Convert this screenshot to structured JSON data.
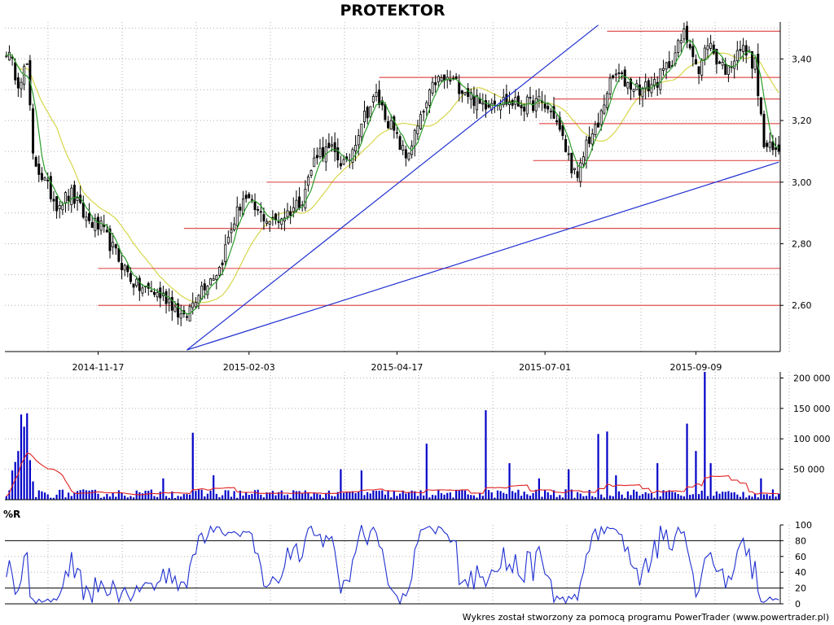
{
  "title": "PROTEKTOR",
  "footer": "Wykres został stworzony za pomocą programu PowerTrader (www.powertrader.pl)",
  "colors": {
    "candle": "#000000",
    "sma_short": "#2a9d2a",
    "sma_long": "#d6d64a",
    "support": "#e05050",
    "trendline": "#1f2fd0",
    "volume": "#0000c8",
    "volume_avg": "#e02020",
    "wr": "#1f2fd0",
    "grid": "#b0b0b0"
  },
  "chart_data": [
    {
      "type": "candlestick",
      "name": "price",
      "x_labels": [
        "2014-11-17",
        "2015-02-03",
        "2015-04-17",
        "2015-07-01",
        "2015-09-09"
      ],
      "x_label_index": [
        31,
        82,
        132,
        182,
        233
      ],
      "n_bars": 262,
      "ylim": [
        2.45,
        3.52
      ],
      "y_ticks": [
        "2,60",
        "2,80",
        "3,00",
        "3,20",
        "3,40"
      ],
      "y_tick_values": [
        2.6,
        2.8,
        3.0,
        3.2,
        3.4
      ],
      "anchors": [
        {
          "i": 0,
          "v": 3.43
        },
        {
          "i": 4,
          "v": 3.33
        },
        {
          "i": 7,
          "v": 3.38
        },
        {
          "i": 9,
          "v": 3.08
        },
        {
          "i": 14,
          "v": 2.98
        },
        {
          "i": 17,
          "v": 2.93
        },
        {
          "i": 22,
          "v": 2.96
        },
        {
          "i": 27,
          "v": 2.88
        },
        {
          "i": 32,
          "v": 2.85
        },
        {
          "i": 38,
          "v": 2.75
        },
        {
          "i": 44,
          "v": 2.66
        },
        {
          "i": 48,
          "v": 2.65
        },
        {
          "i": 55,
          "v": 2.62
        },
        {
          "i": 60,
          "v": 2.55
        },
        {
          "i": 65,
          "v": 2.65
        },
        {
          "i": 68,
          "v": 2.68
        },
        {
          "i": 72,
          "v": 2.72
        },
        {
          "i": 76,
          "v": 2.85
        },
        {
          "i": 80,
          "v": 2.95
        },
        {
          "i": 85,
          "v": 2.9
        },
        {
          "i": 90,
          "v": 2.87
        },
        {
          "i": 95,
          "v": 2.9
        },
        {
          "i": 100,
          "v": 2.95
        },
        {
          "i": 105,
          "v": 3.1
        },
        {
          "i": 110,
          "v": 3.1
        },
        {
          "i": 115,
          "v": 3.05
        },
        {
          "i": 120,
          "v": 3.2
        },
        {
          "i": 125,
          "v": 3.28
        },
        {
          "i": 130,
          "v": 3.18
        },
        {
          "i": 135,
          "v": 3.08
        },
        {
          "i": 140,
          "v": 3.2
        },
        {
          "i": 145,
          "v": 3.33
        },
        {
          "i": 150,
          "v": 3.33
        },
        {
          "i": 155,
          "v": 3.3
        },
        {
          "i": 160,
          "v": 3.25
        },
        {
          "i": 165,
          "v": 3.27
        },
        {
          "i": 170,
          "v": 3.26
        },
        {
          "i": 175,
          "v": 3.25
        },
        {
          "i": 180,
          "v": 3.26
        },
        {
          "i": 185,
          "v": 3.22
        },
        {
          "i": 190,
          "v": 3.08
        },
        {
          "i": 193,
          "v": 3.0
        },
        {
          "i": 196,
          "v": 3.13
        },
        {
          "i": 200,
          "v": 3.18
        },
        {
          "i": 203,
          "v": 3.3
        },
        {
          "i": 206,
          "v": 3.35
        },
        {
          "i": 210,
          "v": 3.32
        },
        {
          "i": 215,
          "v": 3.3
        },
        {
          "i": 220,
          "v": 3.33
        },
        {
          "i": 225,
          "v": 3.4
        },
        {
          "i": 229,
          "v": 3.48
        },
        {
          "i": 232,
          "v": 3.43
        },
        {
          "i": 234,
          "v": 3.35
        },
        {
          "i": 237,
          "v": 3.46
        },
        {
          "i": 240,
          "v": 3.4
        },
        {
          "i": 244,
          "v": 3.36
        },
        {
          "i": 247,
          "v": 3.44
        },
        {
          "i": 250,
          "v": 3.42
        },
        {
          "i": 253,
          "v": 3.38
        },
        {
          "i": 256,
          "v": 3.12
        },
        {
          "i": 259,
          "v": 3.1
        },
        {
          "i": 261,
          "v": 3.1
        }
      ],
      "support_lines": [
        {
          "value": 2.6,
          "from_index": 31
        },
        {
          "value": 2.72,
          "from_index": 31
        },
        {
          "value": 2.85,
          "from_index": 60
        },
        {
          "value": 3.0,
          "from_index": 88
        },
        {
          "value": 3.07,
          "from_index": 178
        },
        {
          "value": 3.19,
          "from_index": 180
        },
        {
          "value": 3.27,
          "from_index": 185
        },
        {
          "value": 3.34,
          "from_index": 126
        },
        {
          "value": 3.49,
          "from_index": 203
        }
      ],
      "trendlines": [
        {
          "from": [
            61,
            2.455
          ],
          "to": [
            200,
            3.51
          ]
        },
        {
          "from": [
            61,
            2.455
          ],
          "to": [
            261,
            3.065
          ]
        }
      ]
    },
    {
      "type": "bar",
      "name": "volume",
      "y_ticks": [
        "50 000",
        "100 000",
        "150 000",
        "200 000"
      ],
      "y_tick_values": [
        50000,
        100000,
        150000,
        200000
      ],
      "ylim": [
        0,
        210000
      ],
      "spikes": [
        {
          "i": 2,
          "v": 48000
        },
        {
          "i": 3,
          "v": 62000
        },
        {
          "i": 4,
          "v": 80000
        },
        {
          "i": 5,
          "v": 140000
        },
        {
          "i": 6,
          "v": 120000
        },
        {
          "i": 7,
          "v": 142000
        },
        {
          "i": 8,
          "v": 65000
        },
        {
          "i": 9,
          "v": 30000
        },
        {
          "i": 53,
          "v": 35000
        },
        {
          "i": 63,
          "v": 110000
        },
        {
          "i": 70,
          "v": 40000
        },
        {
          "i": 113,
          "v": 50000
        },
        {
          "i": 120,
          "v": 48000
        },
        {
          "i": 142,
          "v": 92000
        },
        {
          "i": 162,
          "v": 147000
        },
        {
          "i": 170,
          "v": 60000
        },
        {
          "i": 180,
          "v": 35000
        },
        {
          "i": 190,
          "v": 50000
        },
        {
          "i": 200,
          "v": 108000
        },
        {
          "i": 203,
          "v": 112000
        },
        {
          "i": 206,
          "v": 40000
        },
        {
          "i": 220,
          "v": 60000
        },
        {
          "i": 230,
          "v": 125000
        },
        {
          "i": 233,
          "v": 80000
        },
        {
          "i": 236,
          "v": 210000
        },
        {
          "i": 238,
          "v": 60000
        },
        {
          "i": 255,
          "v": 35000
        }
      ],
      "base_volume": 9000
    },
    {
      "type": "line",
      "name": "%R",
      "label": "%R",
      "y_ticks": [
        "0",
        "20",
        "40",
        "60",
        "80",
        "100"
      ],
      "y_tick_values": [
        0,
        20,
        40,
        60,
        80,
        100
      ],
      "ylim": [
        0,
        100
      ],
      "levels": [
        20,
        80
      ]
    }
  ]
}
